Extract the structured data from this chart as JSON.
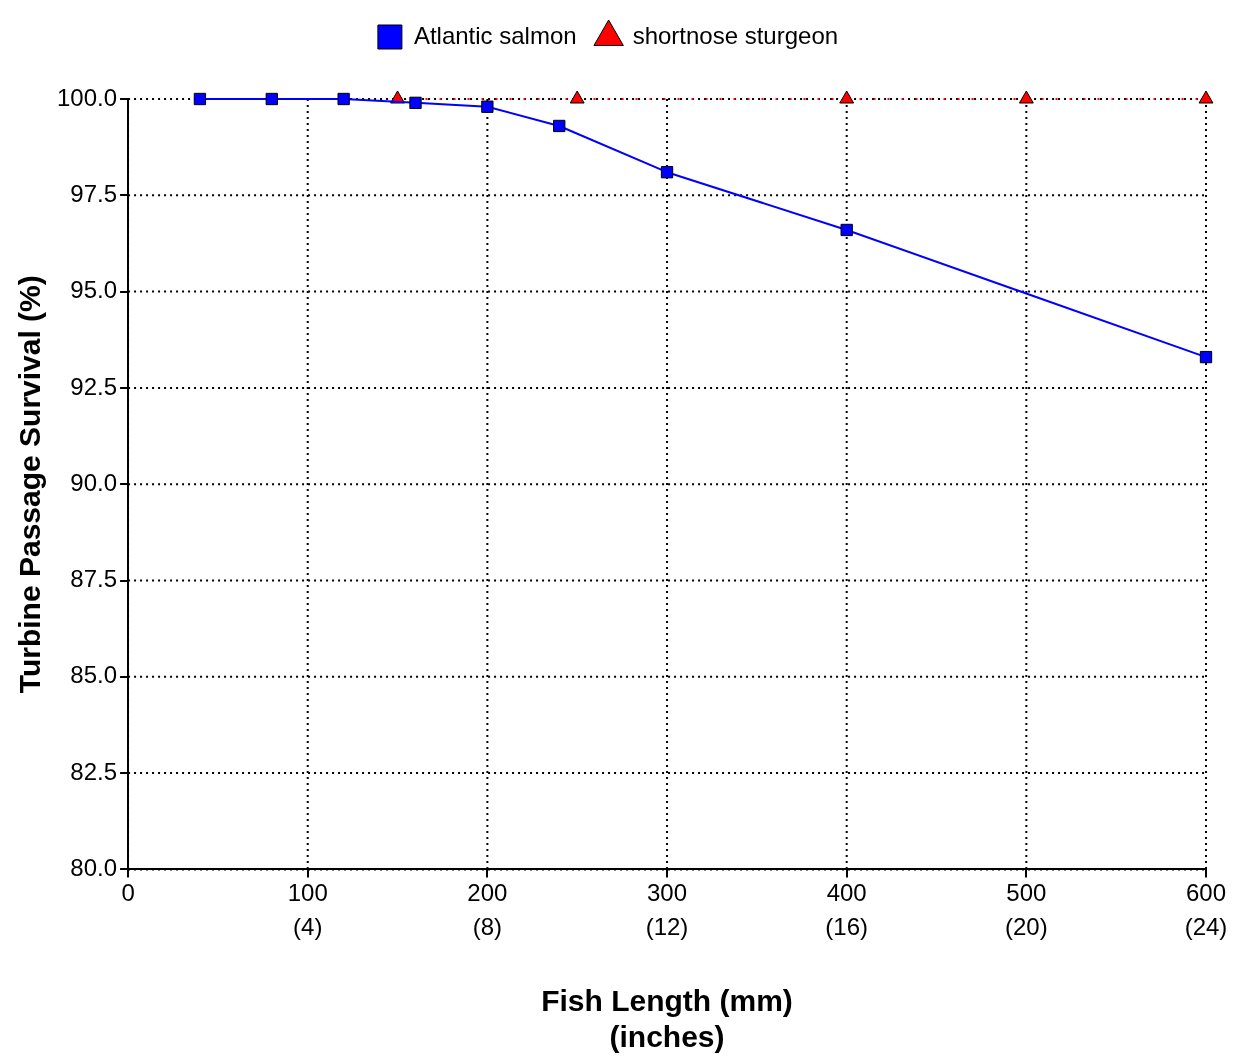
{
  "chart_data": {
    "type": "line",
    "xlabel": "Fish Length (mm)",
    "x2label": "(inches)",
    "ylabel": "Turbine Passage Survival (%)",
    "xlim": [
      0,
      600
    ],
    "xticks": [
      0,
      100,
      200,
      300,
      400,
      500,
      600
    ],
    "x2lim": [
      0,
      24
    ],
    "x2ticks": [
      {
        "value": 4,
        "label": "(4)"
      },
      {
        "value": 8,
        "label": "(8)"
      },
      {
        "value": 12,
        "label": "(12)"
      },
      {
        "value": 16,
        "label": "(16)"
      },
      {
        "value": 20,
        "label": "(20)"
      },
      {
        "value": 24,
        "label": "(24)"
      }
    ],
    "ylim": [
      80,
      100
    ],
    "yticks": [
      {
        "value": 80,
        "label": "80.0"
      },
      {
        "value": 82.5,
        "label": "82.5"
      },
      {
        "value": 85,
        "label": "85.0"
      },
      {
        "value": 87.5,
        "label": "87.5"
      },
      {
        "value": 90,
        "label": "90.0"
      },
      {
        "value": 92.5,
        "label": "92.5"
      },
      {
        "value": 95,
        "label": "95.0"
      },
      {
        "value": 97.5,
        "label": "97.5"
      },
      {
        "value": 100,
        "label": "100.0"
      }
    ],
    "grid": true,
    "legend": "top",
    "series": [
      {
        "name": "Atlantic salmon",
        "color": "#0000ff",
        "marker": "square",
        "line_style": "solid",
        "x": [
          40,
          80,
          120,
          160,
          200,
          240,
          300,
          400,
          600
        ],
        "values": [
          100,
          100,
          100,
          99.9,
          99.8,
          99.3,
          98.1,
          96.6,
          93.3
        ]
      },
      {
        "name": "shortnose sturgeon",
        "color": "#ff0000",
        "marker": "triangle",
        "line_style": "dotted",
        "x": [
          150,
          250,
          400,
          500,
          600
        ],
        "values": [
          100,
          100,
          100,
          100,
          100
        ]
      }
    ]
  }
}
